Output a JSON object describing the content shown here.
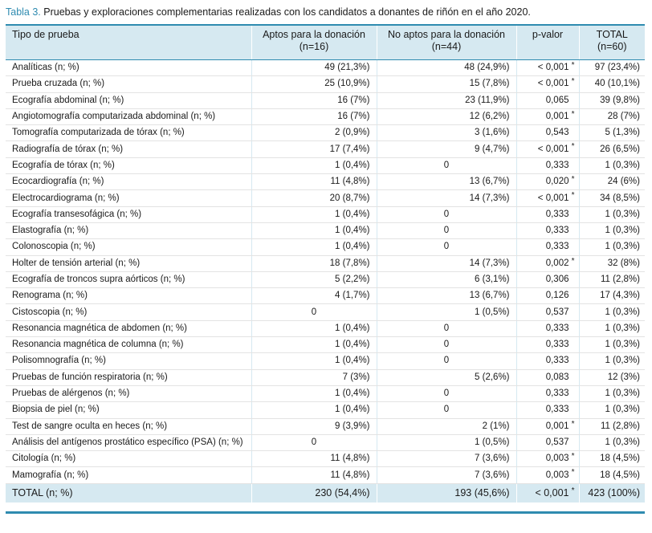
{
  "caption": {
    "lead": "Tabla 3.",
    "text": " Pruebas y exploraciones complementarias realizadas con los candidatos a donantes de riñón en el año 2020."
  },
  "headers": [
    {
      "line1": "Tipo de prueba",
      "line2": ""
    },
    {
      "line1": "Aptos para la donación",
      "line2": "(n=16)"
    },
    {
      "line1": "No aptos para la donación",
      "line2": "(n=44)"
    },
    {
      "line1": "p-valor",
      "line2": ""
    },
    {
      "line1": "TOTAL",
      "line2": "(n=60)"
    }
  ],
  "rows": [
    {
      "test": "Analíticas (n; %)",
      "aptos": "49 (21,3%)",
      "no_aptos": "48 (24,9%)",
      "p": "< 0,001",
      "sig": true,
      "total": "97 (23,4%)"
    },
    {
      "test": "Prueba cruzada (n; %)",
      "aptos": "25 (10,9%)",
      "no_aptos": "15 (7,8%)",
      "p": "< 0,001",
      "sig": true,
      "total": "40 (10,1%)"
    },
    {
      "test": "Ecografía abdominal (n; %)",
      "aptos": "16 (7%)",
      "no_aptos": "23 (11,9%)",
      "p": "0,065",
      "sig": false,
      "total": "39 (9,8%)"
    },
    {
      "test": "Angiotomografía computarizada abdominal (n; %)",
      "aptos": "16 (7%)",
      "no_aptos": "12 (6,2%)",
      "p": "0,001",
      "sig": true,
      "total": "28 (7%)"
    },
    {
      "test": "Tomografía computarizada de tórax (n; %)",
      "aptos": "2 (0,9%)",
      "no_aptos": "3 (1,6%)",
      "p": "0,543",
      "sig": false,
      "total": "5 (1,3%)"
    },
    {
      "test": "Radiografía de tórax (n; %)",
      "aptos": "17 (7,4%)",
      "no_aptos": "9 (4,7%)",
      "p": "< 0,001",
      "sig": true,
      "total": "26 (6,5%)"
    },
    {
      "test": "Ecografía de tórax (n; %)",
      "aptos": "1 (0,4%)",
      "no_aptos": "0",
      "p": "0,333",
      "sig": false,
      "total": "1 (0,3%)"
    },
    {
      "test": "Ecocardiografía (n; %)",
      "aptos": "11 (4,8%)",
      "no_aptos": "13 (6,7%)",
      "p": "0,020",
      "sig": true,
      "total": "24 (6%)"
    },
    {
      "test": "Electrocardiograma (n; %)",
      "aptos": "20 (8,7%)",
      "no_aptos": "14 (7,3%)",
      "p": "< 0,001",
      "sig": true,
      "total": "34 (8,5%)"
    },
    {
      "test": "Ecografía transesofágica (n; %)",
      "aptos": "1 (0,4%)",
      "no_aptos": "0",
      "p": "0,333",
      "sig": false,
      "total": "1 (0,3%)"
    },
    {
      "test": "Elastografía (n; %)",
      "aptos": "1 (0,4%)",
      "no_aptos": "0",
      "p": "0,333",
      "sig": false,
      "total": "1 (0,3%)"
    },
    {
      "test": "Colonoscopia (n; %)",
      "aptos": "1 (0,4%)",
      "no_aptos": "0",
      "p": "0,333",
      "sig": false,
      "total": "1 (0,3%)"
    },
    {
      "test": "Holter de tensión arterial (n; %)",
      "aptos": "18 (7,8%)",
      "no_aptos": "14 (7,3%)",
      "p": "0,002",
      "sig": true,
      "total": "32 (8%)"
    },
    {
      "test": "Ecografía de troncos supra aórticos (n; %)",
      "aptos": "5 (2,2%)",
      "no_aptos": "6 (3,1%)",
      "p": "0,306",
      "sig": false,
      "total": "11 (2,8%)"
    },
    {
      "test": "Renograma (n; %)",
      "aptos": "4 (1,7%)",
      "no_aptos": "13 (6,7%)",
      "p": "0,126",
      "sig": false,
      "total": "17 (4,3%)"
    },
    {
      "test": "Cistoscopia (n; %)",
      "aptos": "0",
      "no_aptos": "1 (0,5%)",
      "p": "0,537",
      "sig": false,
      "total": "1 (0,3%)"
    },
    {
      "test": "Resonancia magnética de abdomen (n; %)",
      "aptos": "1 (0,4%)",
      "no_aptos": "0",
      "p": "0,333",
      "sig": false,
      "total": "1 (0,3%)"
    },
    {
      "test": "Resonancia magnética de columna (n; %)",
      "aptos": "1 (0,4%)",
      "no_aptos": "0",
      "p": "0,333",
      "sig": false,
      "total": "1 (0,3%)"
    },
    {
      "test": "Polisomnografía (n; %)",
      "aptos": "1 (0,4%)",
      "no_aptos": "0",
      "p": "0,333",
      "sig": false,
      "total": "1 (0,3%)"
    },
    {
      "test": "Pruebas de función respiratoria (n; %)",
      "aptos": "7 (3%)",
      "no_aptos": "5 (2,6%)",
      "p": "0,083",
      "sig": false,
      "total": "12 (3%)"
    },
    {
      "test": "Pruebas de alérgenos (n; %)",
      "aptos": "1 (0,4%)",
      "no_aptos": "0",
      "p": "0,333",
      "sig": false,
      "total": "1 (0,3%)"
    },
    {
      "test": "Biopsia de piel (n; %)",
      "aptos": "1 (0,4%)",
      "no_aptos": "0",
      "p": "0,333",
      "sig": false,
      "total": "1 (0,3%)"
    },
    {
      "test": "Test de sangre oculta en heces (n; %)",
      "aptos": "9 (3,9%)",
      "no_aptos": "2 (1%)",
      "p": "0,001",
      "sig": true,
      "total": "11 (2,8%)"
    },
    {
      "test": "Análisis del antígenos prostático específico (PSA) (n; %)",
      "aptos": "0",
      "no_aptos": "1 (0,5%)",
      "p": "0,537",
      "sig": false,
      "total": "1 (0,3%)"
    },
    {
      "test": "Citología (n; %)",
      "aptos": "11 (4,8%)",
      "no_aptos": "7 (3,6%)",
      "p": "0,003",
      "sig": true,
      "total": "18 (4,5%)"
    },
    {
      "test": "Mamografía (n; %)",
      "aptos": "11 (4,8%)",
      "no_aptos": "7 (3,6%)",
      "p": "0,003",
      "sig": true,
      "total": "18 (4,5%)"
    }
  ],
  "total_row": {
    "test": "TOTAL (n; %)",
    "aptos": "230 (54,4%)",
    "no_aptos": "193 (45,6%)",
    "p": "< 0,001",
    "sig": true,
    "total": "423 (100%)"
  },
  "colors": {
    "accent": "#2f8bb0",
    "header_bg": "#d6e9f1"
  }
}
